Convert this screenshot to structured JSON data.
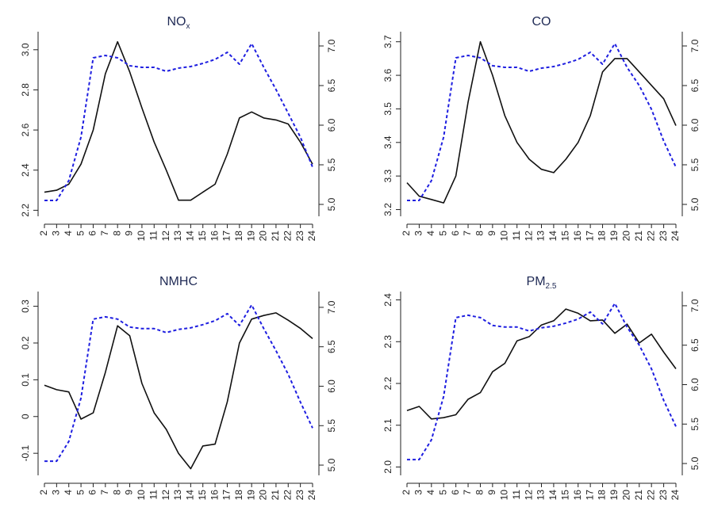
{
  "colors": {
    "solid": "#111111",
    "dashed": "#1f1fe0"
  },
  "chart_data": [
    {
      "type": "line",
      "title": "NOx",
      "title_main": "NO",
      "title_sub": "x",
      "x": [
        2,
        3,
        4,
        5,
        6,
        7,
        8,
        9,
        10,
        11,
        12,
        13,
        14,
        15,
        16,
        17,
        18,
        19,
        20,
        21,
        22,
        23,
        24
      ],
      "x_ticks": [
        "2",
        "3",
        "4",
        "5",
        "6",
        "7",
        "8",
        "9",
        "10",
        "11",
        "12",
        "13",
        "14",
        "15",
        "16",
        "17",
        "18",
        "19",
        "20",
        "21",
        "22",
        "23",
        "24"
      ],
      "ylim_left": [
        2.17,
        3.09
      ],
      "ylim_right": [
        4.85,
        7.18
      ],
      "yticks_left": [
        "2.2",
        "2.4",
        "2.6",
        "2.8",
        "3.0"
      ],
      "yticks_right": [
        "5.0",
        "5.5",
        "6.0",
        "6.5",
        "7.0"
      ],
      "series": [
        {
          "axis": "left",
          "style": "solid",
          "values": [
            2.29,
            2.3,
            2.33,
            2.43,
            2.6,
            2.88,
            3.04,
            2.89,
            2.71,
            2.54,
            2.4,
            2.25,
            2.25,
            2.29,
            2.33,
            2.48,
            2.66,
            2.69,
            2.66,
            2.65,
            2.63,
            2.54,
            2.43
          ]
        },
        {
          "axis": "right",
          "style": "dashed",
          "values": [
            5.05,
            5.05,
            5.3,
            5.85,
            6.85,
            6.88,
            6.85,
            6.75,
            6.73,
            6.73,
            6.68,
            6.72,
            6.74,
            6.78,
            6.83,
            6.92,
            6.77,
            7.03,
            6.73,
            6.45,
            6.15,
            5.85,
            5.47
          ]
        }
      ]
    },
    {
      "type": "line",
      "title": "CO",
      "title_main": "CO",
      "title_sub": "",
      "x": [
        2,
        3,
        4,
        5,
        6,
        7,
        8,
        9,
        10,
        11,
        12,
        13,
        14,
        15,
        16,
        17,
        18,
        19,
        20,
        21,
        22,
        23,
        24
      ],
      "x_ticks": [
        "2",
        "3",
        "4",
        "5",
        "6",
        "7",
        "8",
        "9",
        "10",
        "11",
        "12",
        "13",
        "14",
        "15",
        "16",
        "17",
        "18",
        "19",
        "20",
        "21",
        "22",
        "23",
        "24"
      ],
      "ylim_left": [
        3.18,
        3.73
      ],
      "ylim_right": [
        4.85,
        7.18
      ],
      "yticks_left": [
        "3.2",
        "3.3",
        "3.4",
        "3.5",
        "3.6",
        "3.7"
      ],
      "yticks_right": [
        "5.0",
        "5.5",
        "6.0",
        "6.5",
        "7.0"
      ],
      "series": [
        {
          "axis": "left",
          "style": "solid",
          "values": [
            3.28,
            3.24,
            3.23,
            3.22,
            3.3,
            3.52,
            3.7,
            3.6,
            3.48,
            3.4,
            3.35,
            3.32,
            3.31,
            3.35,
            3.4,
            3.48,
            3.61,
            3.65,
            3.65,
            3.61,
            3.57,
            3.53,
            3.45
          ]
        },
        {
          "axis": "right",
          "style": "dashed",
          "values": [
            5.05,
            5.05,
            5.3,
            5.85,
            6.85,
            6.88,
            6.85,
            6.75,
            6.73,
            6.73,
            6.68,
            6.72,
            6.74,
            6.78,
            6.83,
            6.92,
            6.77,
            7.03,
            6.73,
            6.5,
            6.2,
            5.8,
            5.47
          ]
        }
      ]
    },
    {
      "type": "line",
      "title": "NMHC",
      "title_main": "NMHC",
      "title_sub": "",
      "x": [
        2,
        3,
        4,
        5,
        6,
        7,
        8,
        9,
        10,
        11,
        12,
        13,
        14,
        15,
        16,
        17,
        18,
        19,
        20,
        21,
        22,
        23,
        24
      ],
      "x_ticks": [
        "2",
        "3",
        "4",
        "5",
        "6",
        "7",
        "8",
        "9",
        "10",
        "11",
        "12",
        "13",
        "14",
        "15",
        "16",
        "17",
        "18",
        "19",
        "20",
        "21",
        "22",
        "23",
        "24"
      ],
      "ylim_left": [
        -0.16,
        0.34
      ],
      "ylim_right": [
        4.87,
        7.2
      ],
      "yticks_left": [
        "-0.1",
        "0",
        "0.1",
        "0.2",
        "0.3"
      ],
      "yticks_right": [
        "5.0",
        "5.5",
        "6.0",
        "6.5",
        "7.0"
      ],
      "series": [
        {
          "axis": "left",
          "style": "solid",
          "values": [
            0.085,
            0.073,
            0.067,
            -0.007,
            0.01,
            0.12,
            0.247,
            0.22,
            0.09,
            0.01,
            -0.035,
            -0.1,
            -0.142,
            -0.08,
            -0.075,
            0.04,
            0.2,
            0.265,
            0.275,
            0.282,
            0.262,
            0.24,
            0.212
          ]
        },
        {
          "axis": "right",
          "style": "dashed",
          "values": [
            5.05,
            5.05,
            5.3,
            5.85,
            6.85,
            6.88,
            6.85,
            6.75,
            6.73,
            6.73,
            6.68,
            6.72,
            6.74,
            6.78,
            6.83,
            6.92,
            6.77,
            7.03,
            6.73,
            6.45,
            6.15,
            5.8,
            5.47
          ]
        }
      ]
    },
    {
      "type": "line",
      "title": "PM2.5",
      "title_main": "PM",
      "title_sub": "2.5",
      "x": [
        2,
        3,
        4,
        5,
        6,
        7,
        8,
        9,
        10,
        11,
        12,
        13,
        14,
        15,
        16,
        17,
        18,
        19,
        20,
        21,
        22,
        23,
        24
      ],
      "x_ticks": [
        "2",
        "3",
        "4",
        "5",
        "6",
        "7",
        "8",
        "9",
        "10",
        "11",
        "12",
        "13",
        "14",
        "15",
        "16",
        "17",
        "18",
        "19",
        "20",
        "21",
        "22",
        "23",
        "24"
      ],
      "ylim_left": [
        1.98,
        2.42
      ],
      "ylim_right": [
        4.85,
        7.18
      ],
      "yticks_left": [
        "2.0",
        "2.1",
        "2.2",
        "2.3",
        "2.4"
      ],
      "yticks_right": [
        "5.0",
        "5.5",
        "6.0",
        "6.5",
        "7.0"
      ],
      "series": [
        {
          "axis": "left",
          "style": "solid",
          "values": [
            2.135,
            2.145,
            2.115,
            2.118,
            2.125,
            2.162,
            2.178,
            2.228,
            2.248,
            2.302,
            2.312,
            2.34,
            2.35,
            2.378,
            2.368,
            2.35,
            2.352,
            2.32,
            2.342,
            2.297,
            2.318,
            2.275,
            2.235
          ]
        },
        {
          "axis": "right",
          "style": "dashed",
          "values": [
            5.05,
            5.05,
            5.3,
            5.85,
            6.85,
            6.88,
            6.85,
            6.75,
            6.73,
            6.73,
            6.68,
            6.72,
            6.74,
            6.78,
            6.83,
            6.92,
            6.77,
            7.03,
            6.73,
            6.5,
            6.2,
            5.8,
            5.47
          ]
        }
      ]
    }
  ]
}
